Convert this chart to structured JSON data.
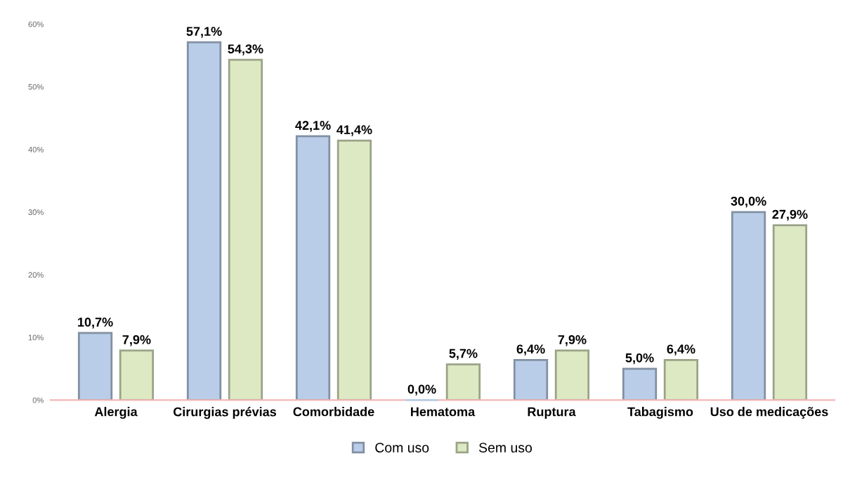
{
  "chart_data": {
    "type": "bar",
    "categories": [
      "Alergia",
      "Cirurgias prévias",
      "Comorbidade",
      "Hematoma",
      "Ruptura",
      "Tabagismo",
      "Uso de medicações"
    ],
    "series": [
      {
        "name": "Com uso",
        "color": "#b9cde8",
        "values": [
          10.7,
          57.1,
          42.1,
          0.0,
          6.4,
          5.0,
          30.0
        ],
        "value_labels": [
          "10,7%",
          "57,1%",
          "42,1%",
          "0,0%",
          "6,4%",
          "5,0%",
          "30,0%"
        ]
      },
      {
        "name": "Sem uso",
        "color": "#dde9c3",
        "values": [
          7.9,
          54.3,
          41.4,
          5.7,
          7.9,
          6.4,
          27.9
        ],
        "value_labels": [
          "7,9%",
          "54,3%",
          "41,4%",
          "5,7%",
          "7,9%",
          "6,4%",
          "27,9%"
        ]
      }
    ],
    "ylim": [
      0,
      60
    ],
    "yticks": [
      {
        "value": 0,
        "label": "0%"
      },
      {
        "value": 10,
        "label": "10%"
      },
      {
        "value": 20,
        "label": "20%"
      },
      {
        "value": 30,
        "label": "30%"
      },
      {
        "value": 40,
        "label": "40%"
      },
      {
        "value": 50,
        "label": "50%"
      },
      {
        "value": 60,
        "label": "60%"
      }
    ],
    "legend": "bottom",
    "grid": false
  }
}
